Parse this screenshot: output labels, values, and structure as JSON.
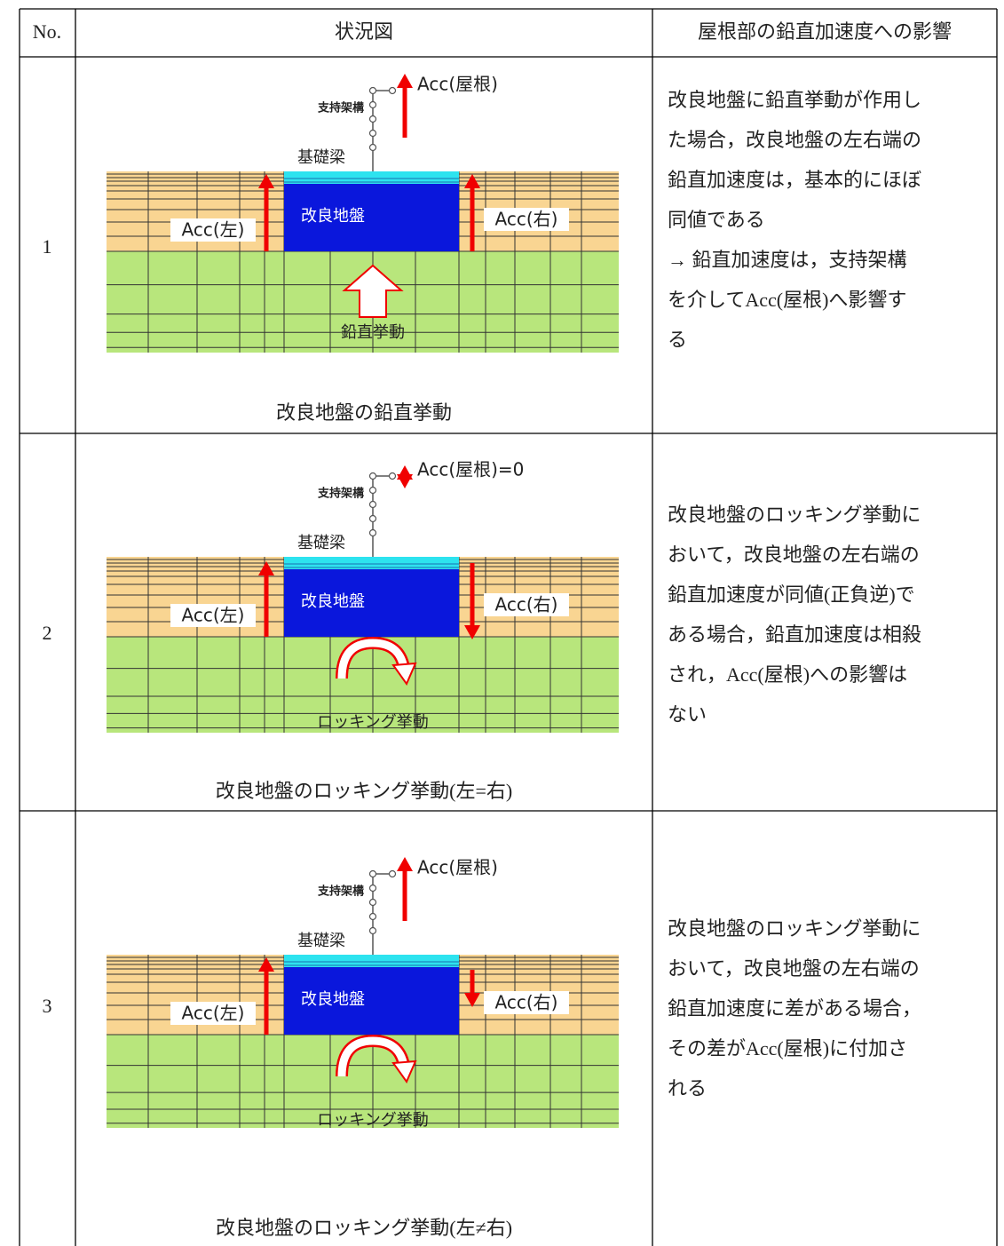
{
  "header": [
    "No.",
    "状況図",
    "屋根部の鉛直加速度への影響"
  ],
  "rows": [
    {
      "no": "1",
      "diagram": {
        "support_frame": "支持架構",
        "foundation_beam": "基礎梁",
        "acc_roof": "Acc(屋根)",
        "improved_ground": "改良地盤",
        "acc_left": "Acc(左)",
        "acc_right": "Acc(右)",
        "motion": "鉛直挙動"
      },
      "caption": "改良地盤の鉛直挙動",
      "description": [
        "改良地盤に鉛直挙動が作用し",
        "た場合，改良地盤の左右端の",
        "鉛直加速度は，基本的にほぼ",
        "同値である",
        "→ 鉛直加速度は，支持架構",
        "を介してAcc(屋根)へ影響す",
        "る"
      ]
    },
    {
      "no": "2",
      "diagram": {
        "support_frame": "支持架構",
        "foundation_beam": "基礎梁",
        "acc_roof": "Acc(屋根)=0",
        "improved_ground": "改良地盤",
        "acc_left": "Acc(左)",
        "acc_right": "Acc(右)",
        "motion": "ロッキング挙動"
      },
      "caption": "改良地盤のロッキング挙動(左=右)",
      "description": [
        "改良地盤のロッキング挙動に",
        "おいて，改良地盤の左右端の",
        "鉛直加速度が同値(正負逆)で",
        "ある場合，鉛直加速度は相殺",
        "され，Acc(屋根)への影響は",
        "ない"
      ]
    },
    {
      "no": "3",
      "diagram": {
        "support_frame": "支持架構",
        "foundation_beam": "基礎梁",
        "acc_roof": "Acc(屋根)",
        "improved_ground": "改良地盤",
        "acc_left": "Acc(左)",
        "acc_right": "Acc(右)",
        "motion": "ロッキング挙動"
      },
      "caption": "改良地盤のロッキング挙動(左≠右)",
      "description": [
        "改良地盤のロッキング挙動に",
        "おいて，改良地盤の左右端の",
        "鉛直加速度に差がある場合，",
        "その差がAcc(屋根)に付加さ",
        "れる"
      ]
    }
  ]
}
